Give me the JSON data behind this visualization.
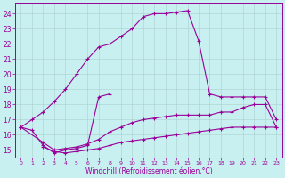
{
  "bg_color": "#c8f0f0",
  "line_color": "#990099",
  "grid_color": "#aacccc",
  "xlabel": "Windchill (Refroidissement éolien,°C)",
  "ylim": [
    14.5,
    24.7
  ],
  "xlim": [
    -0.5,
    23.5
  ],
  "yticks": [
    15,
    16,
    17,
    18,
    19,
    20,
    21,
    22,
    23,
    24
  ],
  "xticks": [
    0,
    1,
    2,
    3,
    4,
    5,
    6,
    7,
    8,
    9,
    10,
    11,
    12,
    13,
    14,
    15,
    16,
    17,
    18,
    19,
    20,
    21,
    22,
    23
  ],
  "curves": [
    {
      "x": [
        0,
        1,
        2,
        3,
        4,
        5,
        6,
        7,
        8,
        9,
        10,
        11,
        12,
        13,
        14,
        15,
        16,
        17,
        18,
        19,
        20,
        21,
        22,
        23
      ],
      "y": [
        16.5,
        17.0,
        17.5,
        18.2,
        19.0,
        20.0,
        21.0,
        21.8,
        22.0,
        22.5,
        23.0,
        23.8,
        24.0,
        24.0,
        24.1,
        24.2,
        22.2,
        18.7,
        18.5,
        18.5,
        18.5,
        18.5,
        18.5,
        17.0
      ]
    },
    {
      "x": [
        0,
        1,
        2,
        3,
        4,
        5,
        6,
        7,
        8
      ],
      "y": [
        16.5,
        16.3,
        15.3,
        14.8,
        15.0,
        15.1,
        15.3,
        18.5,
        18.7
      ]
    },
    {
      "x": [
        0,
        2,
        3,
        4,
        5,
        6,
        7,
        8,
        9,
        10,
        11,
        12,
        13,
        14,
        15,
        16,
        17,
        18,
        19,
        20,
        21,
        22,
        23
      ],
      "y": [
        16.5,
        15.5,
        15.0,
        15.1,
        15.2,
        15.4,
        15.7,
        16.2,
        16.5,
        16.8,
        17.0,
        17.1,
        17.2,
        17.3,
        17.3,
        17.3,
        17.3,
        17.5,
        17.5,
        17.8,
        18.0,
        18.0,
        16.5
      ]
    },
    {
      "x": [
        2,
        3,
        4,
        5,
        6,
        7,
        8,
        9,
        10,
        11,
        12,
        13,
        14,
        15,
        16,
        17,
        18,
        19,
        20,
        21,
        22,
        23
      ],
      "y": [
        15.2,
        14.9,
        14.8,
        14.9,
        15.0,
        15.1,
        15.3,
        15.5,
        15.6,
        15.7,
        15.8,
        15.9,
        16.0,
        16.1,
        16.2,
        16.3,
        16.4,
        16.5,
        16.5,
        16.5,
        16.5,
        16.5
      ]
    }
  ]
}
